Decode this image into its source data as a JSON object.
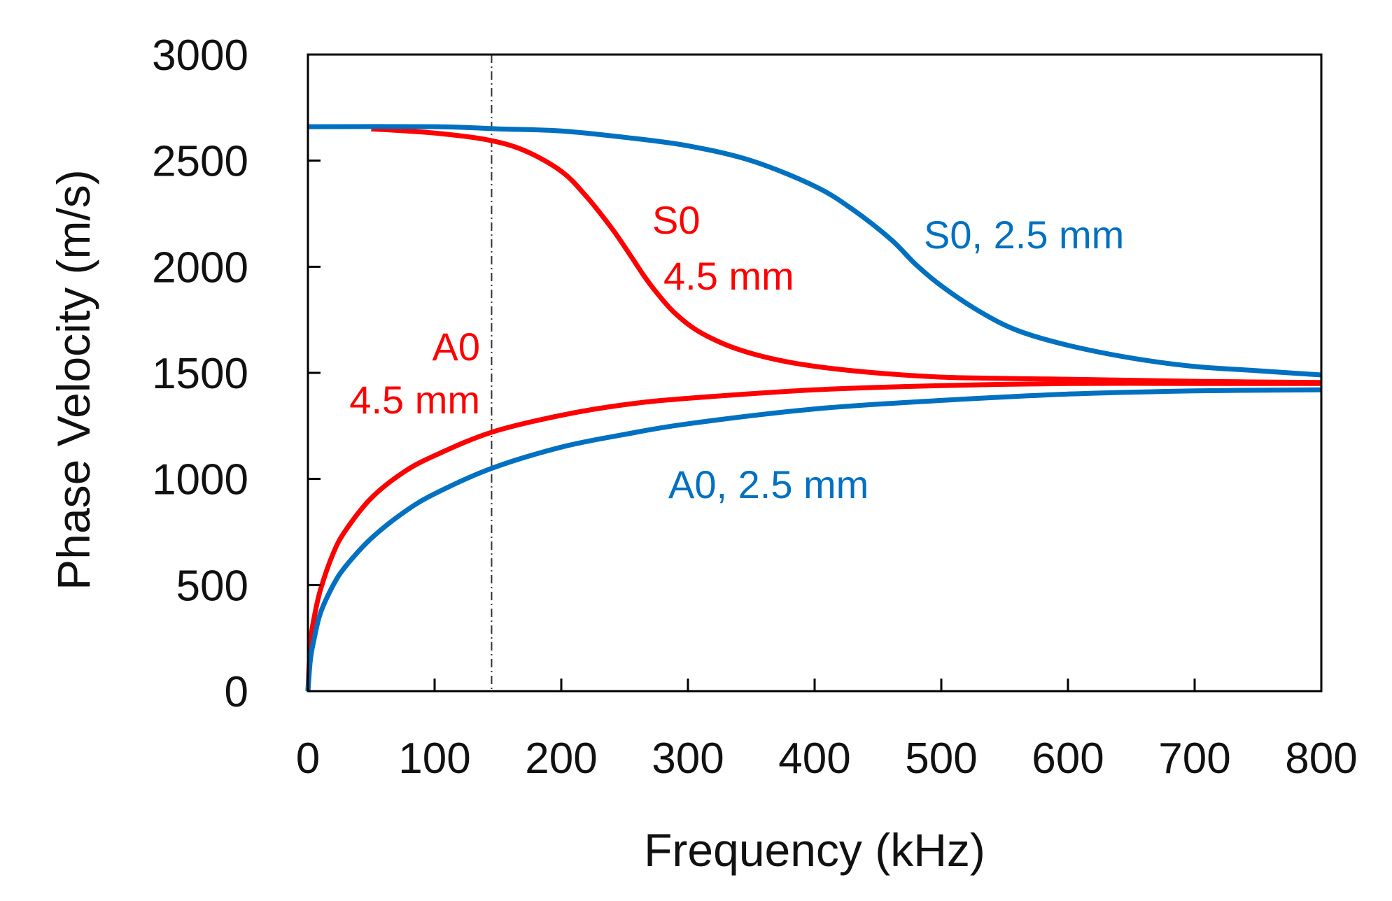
{
  "chart_data": {
    "type": "line",
    "title": "",
    "xlabel": "Frequency (kHz)",
    "ylabel": "Phase Velocity (m/s)",
    "xlim": [
      0,
      800
    ],
    "ylim": [
      0,
      3000
    ],
    "xticks": [
      0,
      100,
      200,
      300,
      400,
      500,
      600,
      700,
      800
    ],
    "yticks": [
      0,
      500,
      1000,
      1500,
      2000,
      2500,
      3000
    ],
    "xtick_labels": [
      "0",
      "100",
      "200",
      "300",
      "400",
      "500",
      "600",
      "700",
      "800"
    ],
    "ytick_labels": [
      "0",
      "500",
      "1000",
      "1500",
      "2000",
      "2500",
      "3000"
    ],
    "grid": false,
    "reference_line": {
      "x": 145,
      "style": "dash-dot"
    },
    "series": [
      {
        "name": "S0, 4.5 mm",
        "label_lines": [
          "S0",
          "4.5 mm"
        ],
        "color": "#ff0000",
        "x": [
          50,
          100,
          140,
          170,
          200,
          220,
          240,
          255,
          265,
          275,
          290,
          310,
          340,
          380,
          430,
          500,
          600,
          700,
          800
        ],
        "y": [
          2650,
          2630,
          2600,
          2550,
          2450,
          2330,
          2180,
          2050,
          1960,
          1880,
          1780,
          1690,
          1610,
          1550,
          1510,
          1480,
          1470,
          1460,
          1455
        ]
      },
      {
        "name": "S0, 2.5 mm",
        "label_lines": [
          "S0, 2.5 mm"
        ],
        "color": "#0070c0",
        "x": [
          0,
          100,
          150,
          200,
          250,
          300,
          350,
          400,
          430,
          460,
          480,
          500,
          530,
          560,
          600,
          650,
          700,
          750,
          800
        ],
        "y": [
          2660,
          2660,
          2650,
          2640,
          2610,
          2570,
          2500,
          2380,
          2270,
          2130,
          2010,
          1910,
          1790,
          1700,
          1630,
          1570,
          1530,
          1510,
          1490
        ]
      },
      {
        "name": "A0, 4.5 mm",
        "label_lines": [
          "A0",
          "4.5 mm"
        ],
        "color": "#ff0000",
        "x": [
          0,
          2,
          5,
          10,
          20,
          30,
          50,
          75,
          100,
          145,
          200,
          250,
          300,
          400,
          500,
          600,
          700,
          800
        ],
        "y": [
          0,
          230,
          350,
          480,
          650,
          760,
          910,
          1030,
          1110,
          1220,
          1300,
          1350,
          1380,
          1420,
          1440,
          1450,
          1450,
          1450
        ]
      },
      {
        "name": "A0, 2.5 mm",
        "label_lines": [
          "A0, 2.5 mm"
        ],
        "color": "#0070c0",
        "x": [
          0,
          2,
          5,
          10,
          20,
          30,
          50,
          75,
          100,
          145,
          200,
          250,
          300,
          400,
          500,
          600,
          700,
          800
        ],
        "y": [
          0,
          150,
          250,
          370,
          500,
          590,
          720,
          840,
          930,
          1050,
          1150,
          1210,
          1260,
          1330,
          1370,
          1400,
          1415,
          1420
        ]
      }
    ]
  }
}
